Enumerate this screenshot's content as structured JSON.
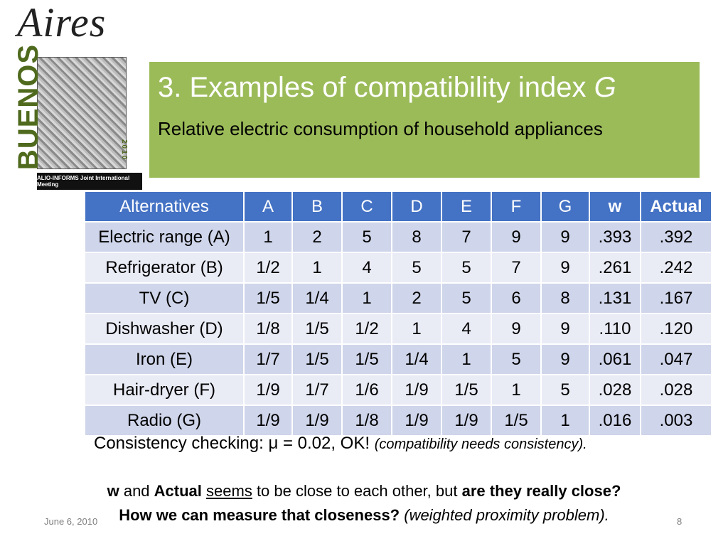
{
  "logo": {
    "aires": "Aires",
    "buenos": "BUENOS",
    "year": "2010",
    "banner": "ALIO-INFORMS Joint International Meeting"
  },
  "title": {
    "main": "3. Examples of compatibility index ",
    "symbol": "G",
    "subtitle": "Relative electric consumption of household appliances"
  },
  "table": {
    "headers": [
      "Alternatives",
      "A",
      "B",
      "C",
      "D",
      "E",
      "F",
      "G",
      "w",
      "Actual"
    ],
    "rows": [
      [
        "Electric range (A)",
        "1",
        "2",
        "5",
        "8",
        "7",
        "9",
        "9",
        ".393",
        ".392"
      ],
      [
        "Refrigerator (B)",
        "1/2",
        "1",
        "4",
        "5",
        "5",
        "7",
        "9",
        ".261",
        ".242"
      ],
      [
        "TV (C)",
        "1/5",
        "1/4",
        "1",
        "2",
        "5",
        "6",
        "8",
        ".131",
        ".167"
      ],
      [
        "Dishwasher (D)",
        "1/8",
        "1/5",
        "1/2",
        "1",
        "4",
        "9",
        "9",
        ".110",
        ".120"
      ],
      [
        "Iron (E)",
        "1/7",
        "1/5",
        "1/5",
        "1/4",
        "1",
        "5",
        "9",
        ".061",
        ".047"
      ],
      [
        "Hair-dryer (F)",
        "1/9",
        "1/7",
        "1/6",
        "1/9",
        "1/5",
        "1",
        "5",
        ".028",
        ".028"
      ],
      [
        "Radio (G)",
        "1/9",
        "1/9",
        "1/8",
        "1/9",
        "1/9",
        "1/5",
        "1",
        ".016",
        ".003"
      ]
    ]
  },
  "consistency": {
    "text": "Consistency checking: μ = 0.02, OK! ",
    "note": "(compatibility needs consistency)."
  },
  "question1": {
    "w": "w",
    "and": " and ",
    "actual": "Actual",
    "space": " ",
    "seems": "seems",
    "middle": " to be close to each other, but ",
    "bold_end": "are they really close?"
  },
  "question2": {
    "bold": "How we can measure that closeness?",
    "italic": " (weighted proximity problem)."
  },
  "footer": {
    "date": "June 6, 2010",
    "page": "8"
  }
}
